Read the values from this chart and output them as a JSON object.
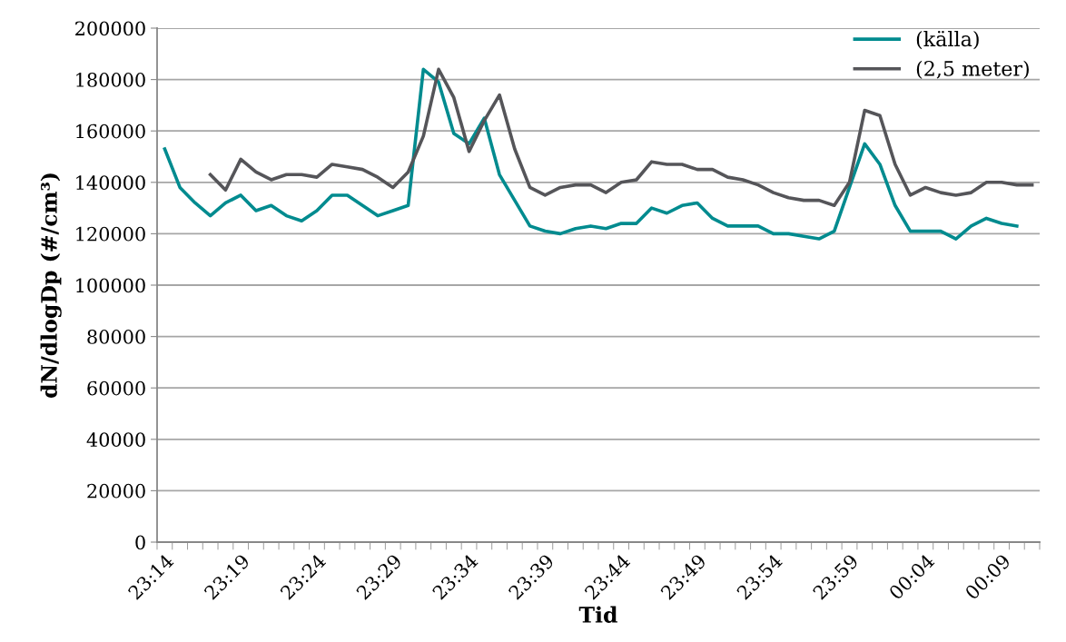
{
  "chart_data": {
    "type": "line",
    "xlabel": "Tid",
    "ylabel": "dN/dlogDp (#/cm³)",
    "categories": [
      "23:14",
      null,
      null,
      null,
      null,
      "23:19",
      null,
      null,
      null,
      null,
      "23:24",
      null,
      null,
      null,
      null,
      "23:29",
      null,
      null,
      null,
      null,
      "23:34",
      null,
      null,
      null,
      null,
      "23:39",
      null,
      null,
      null,
      null,
      "23:44",
      null,
      null,
      null,
      null,
      "23:49",
      null,
      null,
      null,
      null,
      "23:54",
      null,
      null,
      null,
      null,
      "23:59",
      null,
      null,
      null,
      null,
      "00:04",
      null,
      null,
      null,
      null,
      "00:09",
      null,
      null
    ],
    "series": [
      {
        "name": "(källa)",
        "color": "#008b8f",
        "values": [
          153000,
          138000,
          132000,
          127000,
          132000,
          135000,
          129000,
          131000,
          127000,
          125000,
          129000,
          135000,
          135000,
          131000,
          127000,
          129000,
          131000,
          184000,
          179000,
          159000,
          155000,
          165000,
          143000,
          133000,
          123000,
          121000,
          120000,
          122000,
          123000,
          122000,
          124000,
          124000,
          130000,
          128000,
          131000,
          132000,
          126000,
          123000,
          123000,
          123000,
          120000,
          120000,
          119000,
          118000,
          121000,
          138000,
          155000,
          147000,
          131000,
          121000,
          121000,
          121000,
          118000,
          123000,
          126000,
          124000,
          123000,
          null
        ]
      },
      {
        "name": "(2,5 meter)",
        "color": "#555559",
        "values": [
          null,
          null,
          null,
          143000,
          137000,
          149000,
          144000,
          141000,
          143000,
          143000,
          142000,
          147000,
          146000,
          145000,
          142000,
          138000,
          144000,
          158000,
          184000,
          173000,
          152000,
          164000,
          174000,
          153000,
          138000,
          135000,
          138000,
          139000,
          139000,
          136000,
          140000,
          141000,
          148000,
          147000,
          147000,
          145000,
          145000,
          142000,
          141000,
          139000,
          136000,
          134000,
          133000,
          133000,
          131000,
          140000,
          168000,
          166000,
          147000,
          135000,
          138000,
          136000,
          135000,
          136000,
          140000,
          140000,
          139000,
          139000
        ]
      }
    ],
    "ylim": [
      0,
      200000
    ],
    "yticks": [
      0,
      20000,
      40000,
      60000,
      80000,
      100000,
      120000,
      140000,
      160000,
      180000,
      200000
    ],
    "grid": "y",
    "legend": "top right",
    "marker": "none",
    "line_style": "solid"
  }
}
